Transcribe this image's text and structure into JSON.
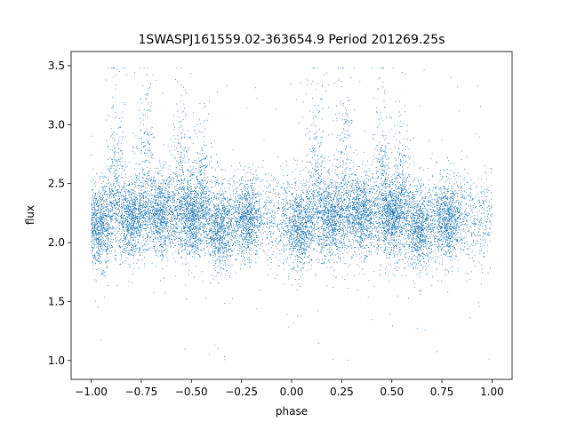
{
  "chart_data": {
    "type": "scatter",
    "title": "1SWASPJ161559.02-363654.9 Period 201269.25s",
    "xlabel": "phase",
    "ylabel": "flux",
    "xlim": [
      -1.1,
      1.1
    ],
    "ylim": [
      0.84,
      3.62
    ],
    "xticks": [
      -1.0,
      -0.75,
      -0.5,
      -0.25,
      0.0,
      0.25,
      0.5,
      0.75,
      1.0
    ],
    "xtick_labels": [
      "−1.00",
      "−0.75",
      "−0.50",
      "−0.25",
      "0.00",
      "0.25",
      "0.50",
      "0.75",
      "1.00"
    ],
    "yticks": [
      1.0,
      1.5,
      2.0,
      2.5,
      3.0,
      3.5
    ],
    "ytick_labels": [
      "1.0",
      "1.5",
      "2.0",
      "2.5",
      "3.0",
      "3.5"
    ],
    "grid": false,
    "legend": "none",
    "marker_color": "#1f77b4",
    "series": [
      {
        "x_range": [
          -1.0,
          1.0
        ],
        "base_flux": 2.2,
        "typical_spread": 0.2,
        "dense_clusters": [
          {
            "phase": -0.96,
            "flux": 2.12
          },
          {
            "phase": -0.8,
            "flux": 2.2
          },
          {
            "phase": -0.65,
            "flux": 2.25
          },
          {
            "phase": -0.5,
            "flux": 2.2
          },
          {
            "phase": -0.36,
            "flux": 2.1
          },
          {
            "phase": -0.22,
            "flux": 2.2
          },
          {
            "phase": 0.04,
            "flux": 2.12
          },
          {
            "phase": 0.2,
            "flux": 2.2
          },
          {
            "phase": 0.35,
            "flux": 2.25
          },
          {
            "phase": 0.5,
            "flux": 2.2
          },
          {
            "phase": 0.64,
            "flux": 2.1
          },
          {
            "phase": 0.78,
            "flux": 2.2
          }
        ],
        "high_flux_streaks": [
          {
            "phase": -0.88,
            "flux_max": 3.4
          },
          {
            "phase": -0.73,
            "flux_max": 3.4
          },
          {
            "phase": -0.55,
            "flux_max": 3.35
          },
          {
            "phase": -0.45,
            "flux_max": 3.1
          },
          {
            "phase": 0.12,
            "flux_max": 3.4
          },
          {
            "phase": 0.27,
            "flux_max": 3.4
          },
          {
            "phase": 0.45,
            "flux_max": 3.35
          },
          {
            "phase": 0.55,
            "flux_max": 3.1
          }
        ],
        "flux_min": 1.0,
        "flux_max": 3.48
      }
    ]
  }
}
